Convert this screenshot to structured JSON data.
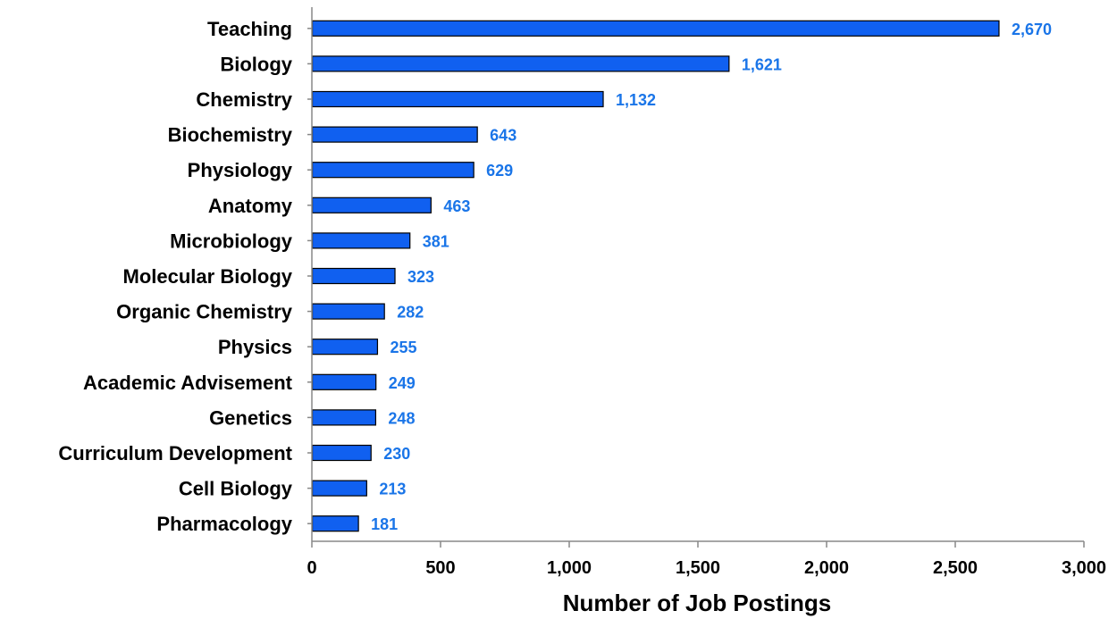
{
  "chart_data": {
    "type": "bar",
    "orientation": "horizontal",
    "categories": [
      "Teaching",
      "Biology",
      "Chemistry",
      "Biochemistry",
      "Physiology",
      "Anatomy",
      "Microbiology",
      "Molecular Biology",
      "Organic Chemistry",
      "Physics",
      "Academic Advisement",
      "Genetics",
      "Curriculum Development",
      "Cell Biology",
      "Pharmacology"
    ],
    "values": [
      2670,
      1621,
      1132,
      643,
      629,
      463,
      381,
      323,
      282,
      255,
      249,
      248,
      230,
      213,
      181
    ],
    "data_labels": [
      "2,670",
      "1,621",
      "1,132",
      "643",
      "629",
      "463",
      "381",
      "323",
      "282",
      "255",
      "249",
      "248",
      "230",
      "213",
      "181"
    ],
    "title": "",
    "xlabel": "Number of Job Postings",
    "ylabel": "",
    "xlim": [
      0,
      3000
    ],
    "x_ticks": [
      0,
      500,
      1000,
      1500,
      2000,
      2500,
      3000
    ],
    "x_tick_labels": [
      "0",
      "500",
      "1,000",
      "1,500",
      "2,000",
      "2,500",
      "3,000"
    ],
    "grid": false,
    "legend": "none",
    "colors": {
      "bar_fill": "#1060F0",
      "bar_stroke": "#000000",
      "data_label": "#1A75E8",
      "axis": "#888888"
    }
  }
}
